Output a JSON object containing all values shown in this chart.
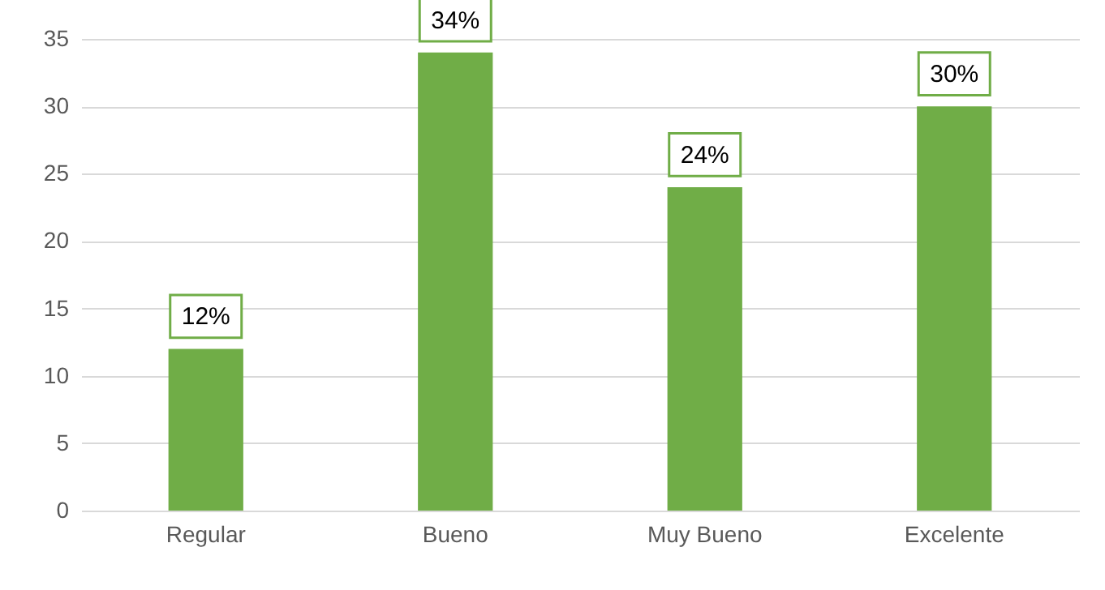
{
  "chart_data": {
    "type": "bar",
    "categories": [
      "Regular",
      "Bueno",
      "Muy Bueno",
      "Excelente"
    ],
    "values": [
      12,
      34,
      24,
      30
    ],
    "color": "#70ad47",
    "value_labels": [
      "12%",
      "34%",
      "24%",
      "30%"
    ],
    "ylim": [
      0,
      35
    ],
    "yticks": [
      0,
      5,
      10,
      15,
      20,
      25,
      30,
      35
    ],
    "grid": "y"
  }
}
